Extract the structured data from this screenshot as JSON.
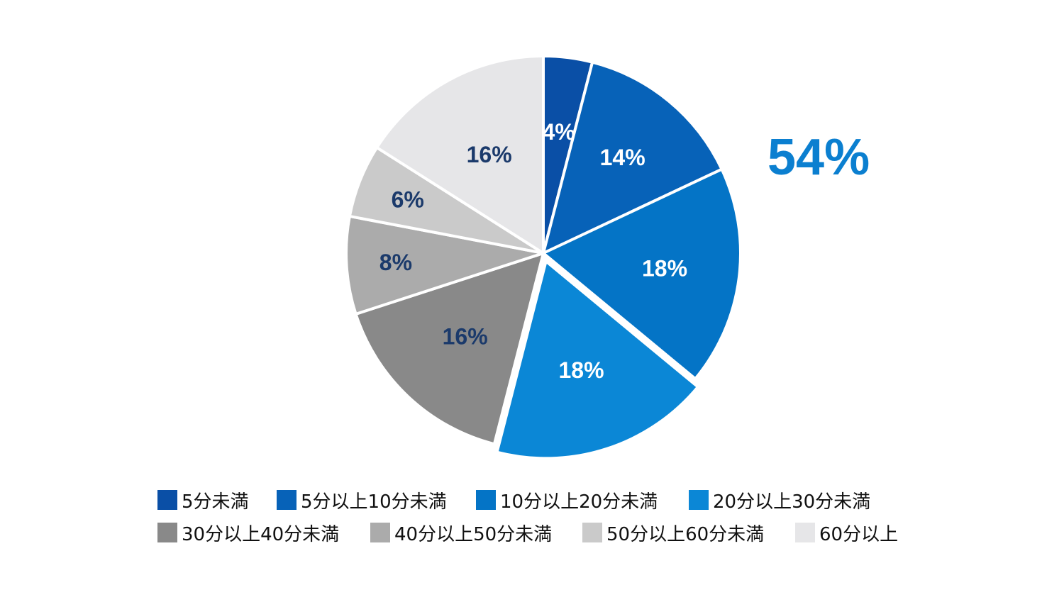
{
  "chart_data": {
    "type": "pie",
    "categories": [
      "5分未満",
      "5分以上10分未満",
      "10分以上20分未満",
      "20分以上30分未満",
      "30分以上40分未満",
      "40分以上50分未満",
      "50分以上60分未満",
      "60分以上"
    ],
    "values": [
      4,
      14,
      18,
      18,
      16,
      8,
      6,
      16
    ],
    "labels": [
      "4%",
      "14%",
      "18%",
      "18%",
      "16%",
      "8%",
      "6%",
      "16%"
    ],
    "colors": [
      "#0a4fa6",
      "#0762b8",
      "#0474c6",
      "#0b87d6",
      "#898989",
      "#ababab",
      "#cacaca",
      "#e6e6e8"
    ],
    "label_colors": [
      "#ffffff",
      "#ffffff",
      "#ffffff",
      "#ffffff",
      "#1b3a6b",
      "#1b3a6b",
      "#1b3a6b",
      "#1b3a6b"
    ],
    "exploded_index": 3,
    "highlight_value": "54%",
    "highlight_color": "#0b7fd0",
    "legend_placement": "bottom"
  }
}
